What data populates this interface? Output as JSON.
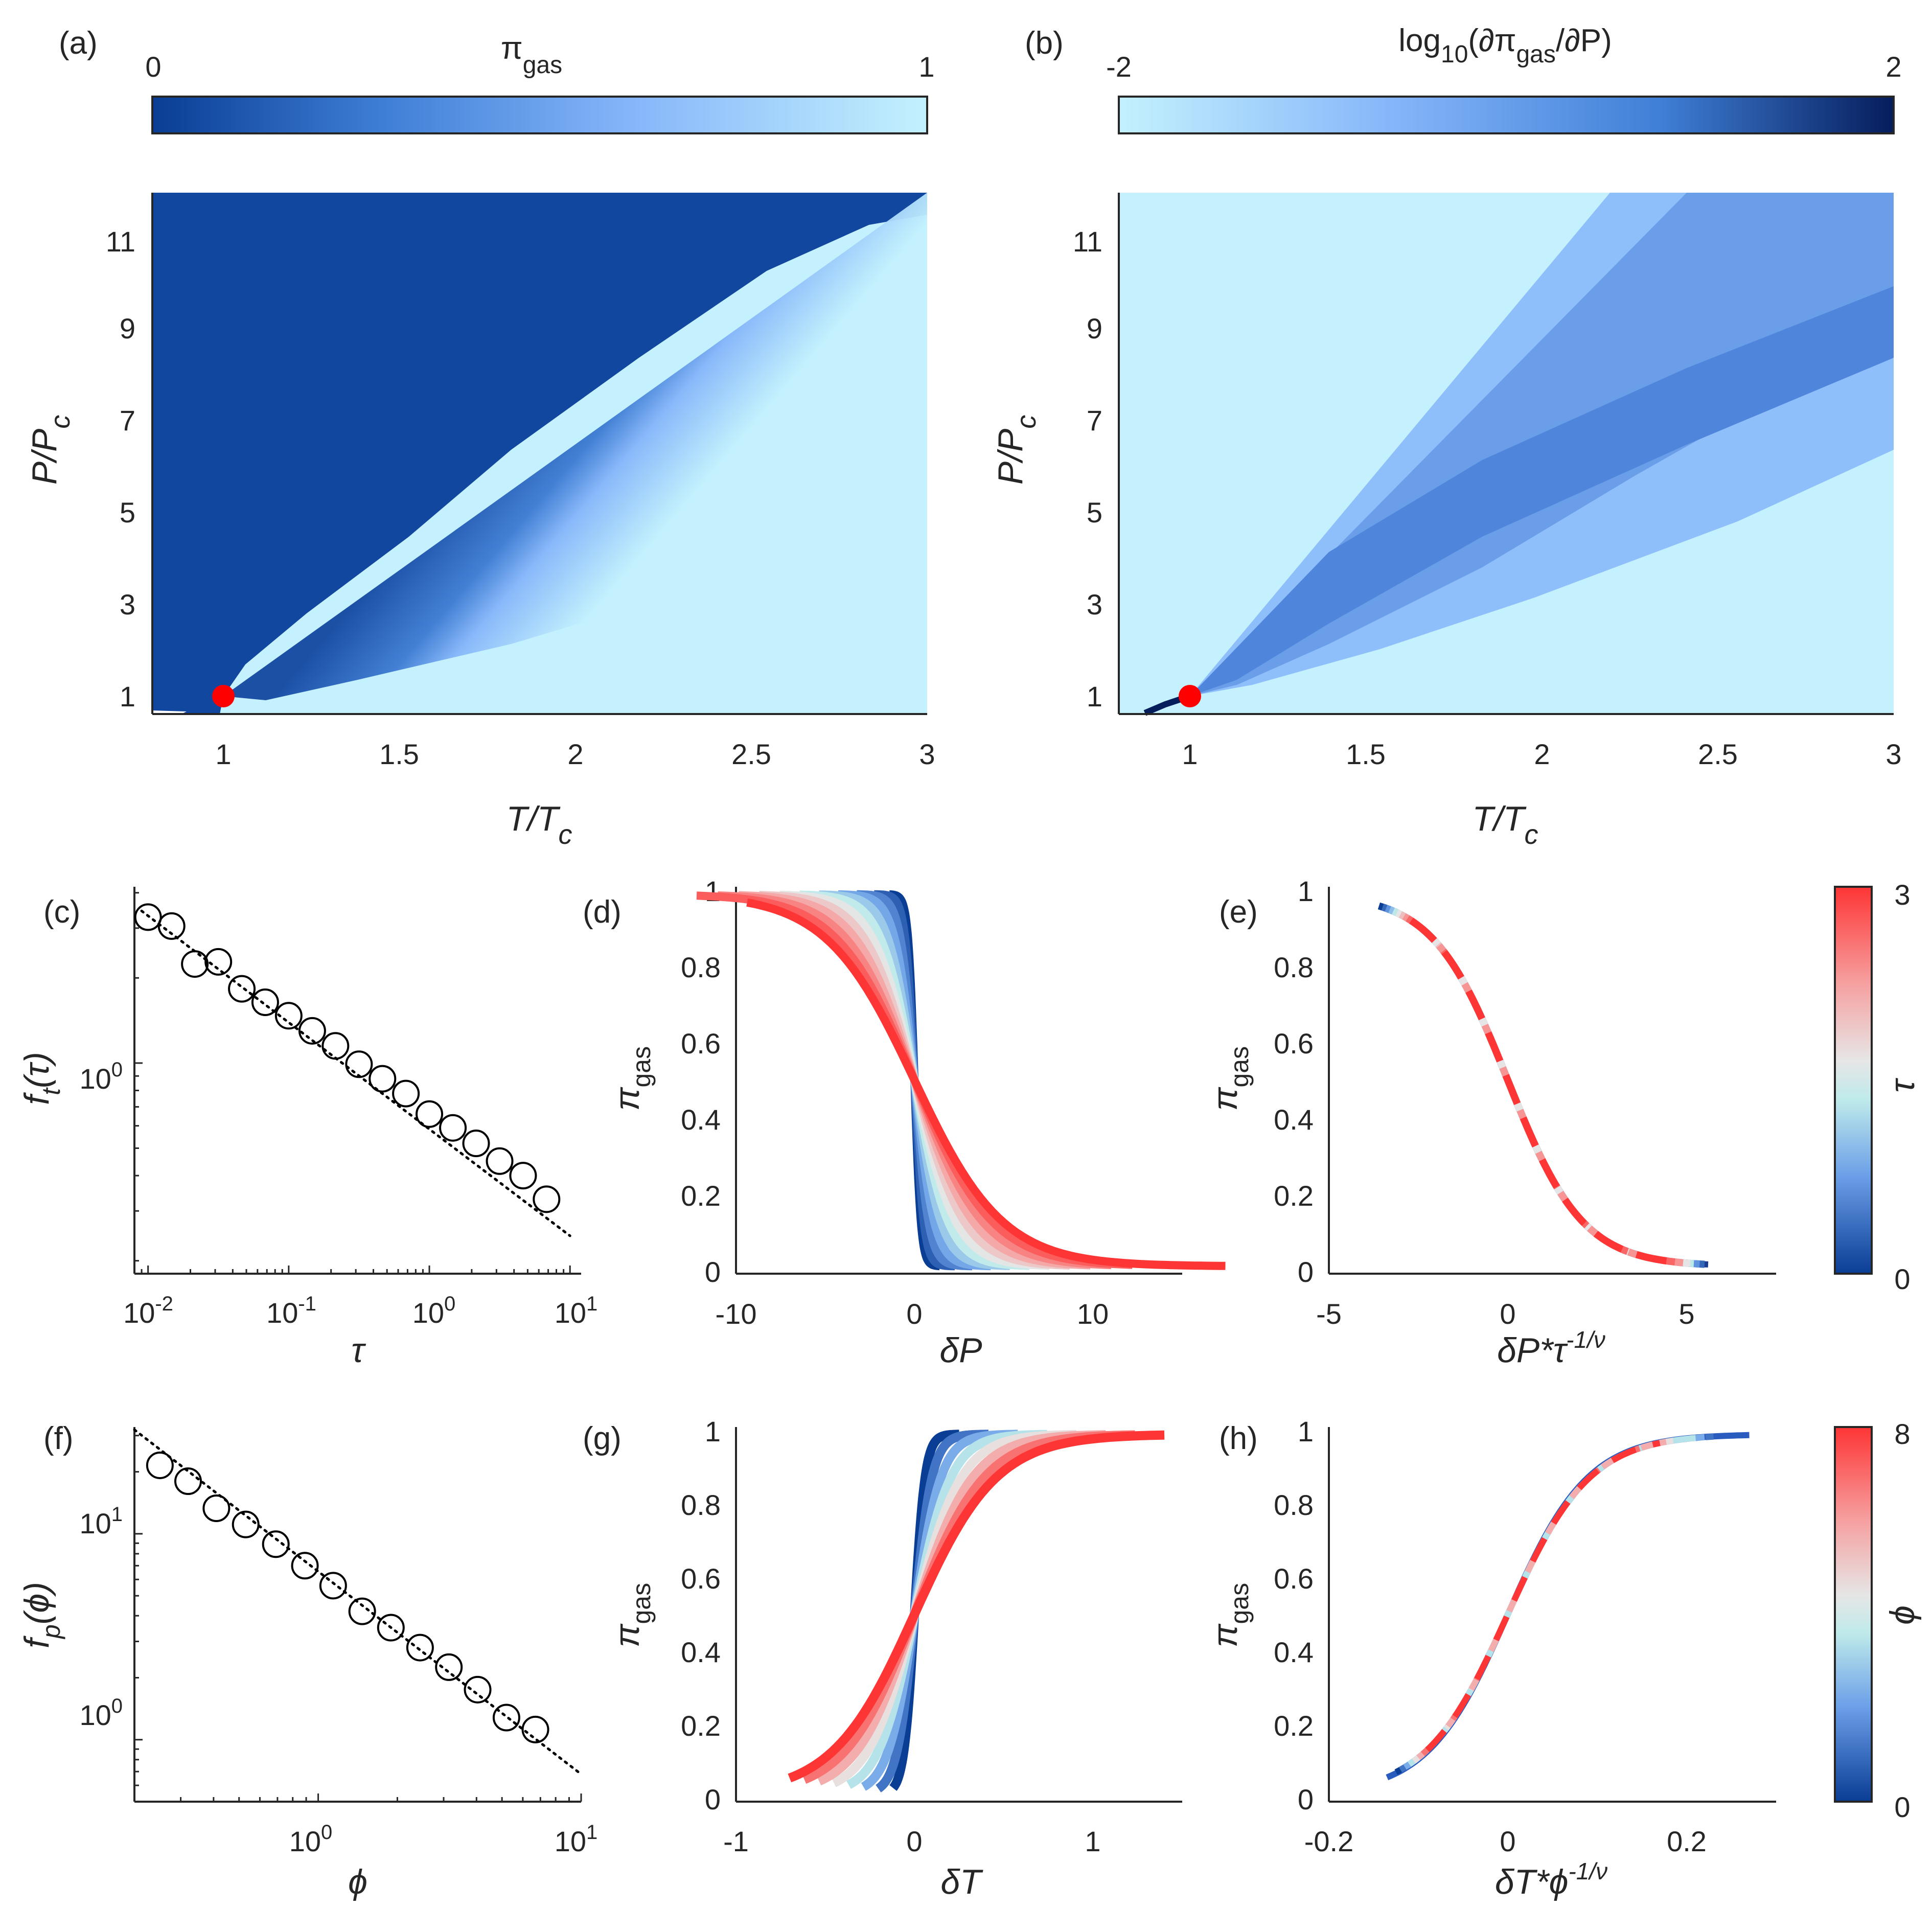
{
  "panels": {
    "a": {
      "label": "(a)",
      "cb_title": "π",
      "cb_title_sub": "gas",
      "cb_min": "0",
      "cb_max": "1",
      "xlabel": "T/T",
      "xlabel_sub": "c",
      "ylabel": "P/P",
      "ylabel_sub": "c",
      "xticks": [
        "1",
        "1.5",
        "2",
        "2.5",
        "3"
      ],
      "yticks": [
        "1",
        "3",
        "5",
        "7",
        "9",
        "11"
      ]
    },
    "b": {
      "label": "(b)",
      "cb_title": "log",
      "cb_title_sub": "10",
      "cb_title_rest": "(∂π",
      "cb_title_sub2": "gas",
      "cb_title_rest2": "/∂P)",
      "cb_min": "-2",
      "cb_max": "2",
      "xlabel": "T/T",
      "xlabel_sub": "c",
      "ylabel": "P/P",
      "ylabel_sub": "c",
      "xticks": [
        "1",
        "1.5",
        "2",
        "2.5",
        "3"
      ],
      "yticks": [
        "1",
        "3",
        "5",
        "7",
        "9",
        "11"
      ]
    },
    "c": {
      "label": "(c)",
      "xlabel": "τ",
      "ylabel": "f",
      "ylabel_sub": "t",
      "ylabel_rest": "(τ)",
      "xtick_base": "10",
      "xtick_exps": [
        "-2",
        "-1",
        "0",
        "1"
      ],
      "ytick_base": "10",
      "ytick_exps": [
        "0"
      ]
    },
    "d": {
      "label": "(d)",
      "xlabel": "δP",
      "ylabel": "π",
      "ylabel_sub": "gas",
      "xticks": [
        "-10",
        "0",
        "10"
      ],
      "yticks": [
        "0",
        "0.2",
        "0.4",
        "0.6",
        "0.8",
        "1"
      ]
    },
    "e": {
      "label": "(e)",
      "xlabel": "δP*τ",
      "xlabel_sup": "-1/ν",
      "ylabel": "π",
      "ylabel_sub": "gas",
      "xticks": [
        "-5",
        "0",
        "5"
      ],
      "yticks": [
        "0",
        "0.2",
        "0.4",
        "0.6",
        "0.8",
        "1"
      ],
      "cb_label": "τ",
      "cb_min": "0",
      "cb_max": "3"
    },
    "f": {
      "label": "(f)",
      "xlabel": "ϕ",
      "ylabel": "f",
      "ylabel_sub": "p",
      "ylabel_rest": "(ϕ)",
      "xtick_base": "10",
      "xtick_exps": [
        "0",
        "1"
      ],
      "ytick_base": "10",
      "ytick_exps": [
        "0",
        "1"
      ]
    },
    "g": {
      "label": "(g)",
      "xlabel": "δT",
      "ylabel": "π",
      "ylabel_sub": "gas",
      "xticks": [
        "-1",
        "0",
        "1"
      ],
      "yticks": [
        "0",
        "0.2",
        "0.4",
        "0.6",
        "0.8",
        "1"
      ]
    },
    "h": {
      "label": "(h)",
      "xlabel": "δT*ϕ",
      "xlabel_sup": "-1/ν",
      "ylabel": "π",
      "ylabel_sub": "gas",
      "xticks": [
        "-0.2",
        "0",
        "0.2"
      ],
      "yticks": [
        "0",
        "0.2",
        "0.4",
        "0.6",
        "0.8",
        "1"
      ],
      "cb_label": "ϕ",
      "cb_min": "0",
      "cb_max": "8"
    }
  },
  "colors": {
    "dark_blue": "#0a2a6e",
    "mid_blue": "#7fb0f7",
    "light_cyan": "#c4f1fd",
    "red": "#fe3535",
    "red_marker": "#ff0000",
    "white_mid": "#e6e6e6"
  },
  "chart_data": [
    {
      "panel": "a",
      "type": "heatmap",
      "description_values": "pi_gas over T/Tc in [0.8,3], P/Pc in [0.6,12]; dark (0) above coexistence, light (1) below; critical point marked",
      "xlim": [
        0.8,
        3
      ],
      "ylim": [
        0.6,
        12
      ],
      "clim": [
        0,
        1
      ],
      "critical_point": {
        "x": 1,
        "y": 1
      }
    },
    {
      "panel": "b",
      "type": "heatmap",
      "xlim": [
        0.8,
        3
      ],
      "ylim": [
        0.6,
        12
      ],
      "clim": [
        -2,
        2
      ],
      "critical_point": {
        "x": 1,
        "y": 1
      },
      "coexistence_line": {
        "x": [
          0.88,
          0.93,
          1.0
        ],
        "y": [
          0.6,
          0.75,
          1.0
        ]
      }
    },
    {
      "panel": "c",
      "type": "scatter",
      "xscale": "log",
      "yscale": "log",
      "xlim": [
        0.008,
        12
      ],
      "ylim": [
        0.18,
        4.2
      ],
      "x": [
        0.01,
        0.0147,
        0.0215,
        0.0316,
        0.0464,
        0.0681,
        0.1,
        0.147,
        0.215,
        0.316,
        0.464,
        0.681,
        1.0,
        1.47,
        2.15,
        3.16,
        4.64,
        6.81
      ],
      "y": [
        3.28,
        3.05,
        2.24,
        2.28,
        1.83,
        1.64,
        1.47,
        1.3,
        1.15,
        0.99,
        0.88,
        0.78,
        0.66,
        0.59,
        0.52,
        0.45,
        0.4,
        0.33
      ],
      "fit": {
        "x": [
          0.009,
          10
        ],
        "y": [
          3.45,
          0.245
        ]
      }
    },
    {
      "panel": "d",
      "type": "line",
      "xlim": [
        -10,
        15
      ],
      "ylim": [
        -0.02,
        1.02
      ],
      "series_count": 12,
      "color_from": "#0a3d94",
      "color_to": "#fe3535"
    },
    {
      "panel": "e",
      "type": "line",
      "xlim": [
        -5,
        7.5
      ],
      "ylim": [
        -0.02,
        1.02
      ],
      "collapse": "all tau curves overlap onto one sigmoid",
      "clim": [
        0,
        3
      ]
    },
    {
      "panel": "f",
      "type": "scatter",
      "xscale": "log",
      "yscale": "log",
      "xlim": [
        0.2,
        10
      ],
      "ylim": [
        0.5,
        33
      ],
      "x": [
        0.25,
        0.32,
        0.41,
        0.53,
        0.69,
        0.89,
        1.14,
        1.47,
        1.89,
        2.44,
        3.14,
        4.04,
        5.2,
        6.7
      ],
      "y": [
        21.5,
        18.0,
        13.3,
        11.1,
        8.9,
        7.0,
        5.6,
        4.2,
        3.5,
        2.8,
        2.25,
        1.75,
        1.28,
        1.12
      ],
      "fit": {
        "x": [
          0.2,
          10
        ],
        "y": [
          32,
          0.68
        ]
      }
    },
    {
      "panel": "g",
      "type": "line",
      "xlim": [
        -1.0,
        1.5
      ],
      "ylim": [
        -0.02,
        1.02
      ],
      "series_count": 8
    },
    {
      "panel": "h",
      "type": "line",
      "xlim": [
        -0.2,
        0.3
      ],
      "ylim": [
        -0.02,
        1.02
      ],
      "clim": [
        0,
        8
      ]
    }
  ]
}
